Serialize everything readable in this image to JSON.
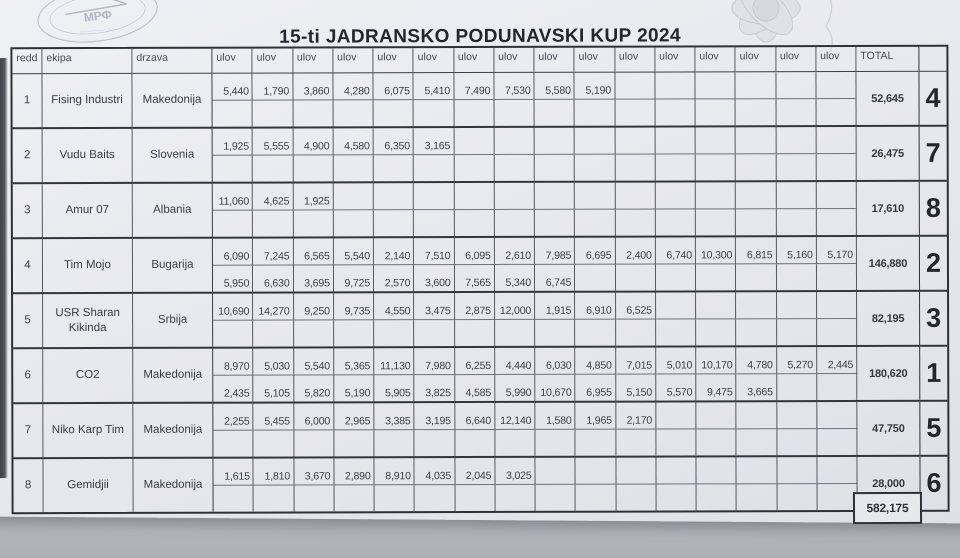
{
  "title": "15-ti JADRANSKO PODUNAVSKI KUP 2024",
  "stamp": {
    "text": "МРФ"
  },
  "colors": {
    "ink": "#3c4048",
    "paper": "#e9eaef",
    "photo_background": "#c6c8cf",
    "border": "#2e3138"
  },
  "table": {
    "headers": {
      "redd": "redd",
      "ekipa": "ekipa",
      "drzava": "drzava",
      "ulov": "ulov",
      "total": "TOTAL"
    },
    "ulov_columns": 16,
    "rows": [
      {
        "redd": "1",
        "ekipa": "Fising Industri",
        "drzava": "Makedonija",
        "catches1": [
          "5,440",
          "1,790",
          "3,860",
          "4,280",
          "6,075",
          "5,410",
          "7,490",
          "7,530",
          "5,580",
          "5,190"
        ],
        "catches2": [],
        "total": "52,645",
        "rank": "4"
      },
      {
        "redd": "2",
        "ekipa": "Vudu Baits",
        "drzava": "Slovenia",
        "catches1": [
          "1,925",
          "5,555",
          "4,900",
          "4,580",
          "6,350",
          "3,165"
        ],
        "catches2": [],
        "total": "26,475",
        "rank": "7"
      },
      {
        "redd": "3",
        "ekipa": "Amur 07",
        "drzava": "Albania",
        "catches1": [
          "11,060",
          "4,625",
          "1,925"
        ],
        "catches2": [],
        "total": "17,610",
        "rank": "8"
      },
      {
        "redd": "4",
        "ekipa": "Tim Mojo",
        "drzava": "Bugarija",
        "catches1": [
          "6,090",
          "7,245",
          "6,565",
          "5,540",
          "2,140",
          "7,510",
          "6,095",
          "2,610",
          "7,985",
          "6,695",
          "2,400",
          "6,740",
          "10,300",
          "6,815",
          "5,160",
          "5,170"
        ],
        "catches2": [
          "5,950",
          "6,630",
          "3,695",
          "9,725",
          "2,570",
          "3,600",
          "7,565",
          "5,340",
          "6,745"
        ],
        "total": "146,880",
        "rank": "2"
      },
      {
        "redd": "5",
        "ekipa": "USR Sharan Kikinda",
        "drzava": "Srbija",
        "catches1": [
          "10,690",
          "14,270",
          "9,250",
          "9,735",
          "4,550",
          "3,475",
          "2,875",
          "12,000",
          "1,915",
          "6,910",
          "6,525"
        ],
        "catches2": [],
        "total": "82,195",
        "rank": "3"
      },
      {
        "redd": "6",
        "ekipa": "CO2",
        "drzava": "Makedonija",
        "catches1": [
          "8,970",
          "5,030",
          "5,540",
          "5,365",
          "11,130",
          "7,980",
          "6,255",
          "4,440",
          "6,030",
          "4,850",
          "7,015",
          "5,010",
          "10,170",
          "4,780",
          "5,270",
          "2,445"
        ],
        "catches2": [
          "2,435",
          "5,105",
          "5,820",
          "5,190",
          "5,905",
          "3,825",
          "4,585",
          "5,990",
          "10,670",
          "6,955",
          "5,150",
          "5,570",
          "9,475",
          "3,665"
        ],
        "total": "180,620",
        "rank": "1"
      },
      {
        "redd": "7",
        "ekipa": "Niko Karp Tim",
        "drzava": "Makedonija",
        "catches1": [
          "2,255",
          "5,455",
          "6,000",
          "2,965",
          "3,385",
          "3,195",
          "6,640",
          "12,140",
          "1,580",
          "1,965",
          "2,170"
        ],
        "catches2": [],
        "total": "47,750",
        "rank": "5"
      },
      {
        "redd": "8",
        "ekipa": "Gemidjii",
        "drzava": "Makedonija",
        "catches1": [
          "1,615",
          "1,810",
          "3,670",
          "2,890",
          "8,910",
          "4,035",
          "2,045",
          "3,025"
        ],
        "catches2": [],
        "total": "28,000",
        "rank": "6"
      }
    ],
    "grand_total": "582,175"
  }
}
